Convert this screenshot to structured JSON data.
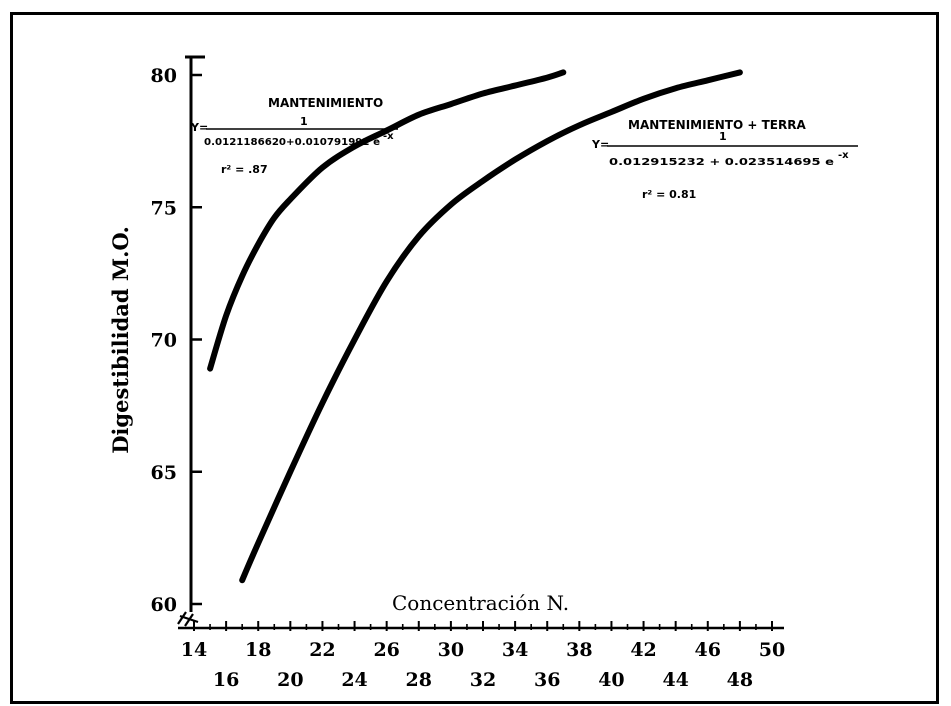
{
  "chart_data": {
    "type": "line",
    "title": "",
    "xlabel": "Concentración N.",
    "ylabel": "Digestibilidad M.O.",
    "xlim": [
      14,
      50
    ],
    "ylim": [
      60,
      80
    ],
    "x_ticks_upper": [
      "14",
      "18",
      "22",
      "26",
      "30",
      "34",
      "38",
      "42",
      "46",
      "50"
    ],
    "x_ticks_lower": [
      "16",
      "20",
      "24",
      "28",
      "32",
      "36",
      "40",
      "44",
      "48"
    ],
    "y_ticks": [
      "60",
      "65",
      "70",
      "75",
      "80"
    ],
    "grid": false,
    "axis_break": true,
    "series": [
      {
        "name": "MANTENIMIENTO",
        "equation_lhs": "Y=",
        "equation_numerator": "1",
        "equation_denominator": "0.0121186620+0.010791992 e",
        "equation_exponent": "-x",
        "r2_label": "r² = .87",
        "x": [
          15,
          16,
          17,
          18,
          19,
          20,
          22,
          24,
          26,
          28,
          30,
          32,
          34,
          36,
          37
        ],
        "y": [
          68.9,
          70.9,
          72.4,
          73.6,
          74.6,
          75.3,
          76.5,
          77.3,
          77.9,
          78.5,
          78.9,
          79.3,
          79.6,
          79.9,
          80.1
        ]
      },
      {
        "name": "MANTENIMIENTO + TERRA",
        "equation_lhs": "Y=",
        "equation_numerator": "1",
        "equation_denominator": "0.012915232 + 0.023514695 e",
        "equation_exponent": "-x",
        "r2_label": "r² = 0.81",
        "x": [
          17,
          18,
          20,
          22,
          24,
          26,
          28,
          30,
          32,
          34,
          36,
          38,
          40,
          42,
          44,
          46,
          48
        ],
        "y": [
          60.9,
          62.3,
          65.0,
          67.6,
          70.0,
          72.2,
          73.9,
          75.1,
          76.0,
          76.8,
          77.5,
          78.1,
          78.6,
          79.1,
          79.5,
          79.8,
          80.1
        ]
      }
    ]
  }
}
